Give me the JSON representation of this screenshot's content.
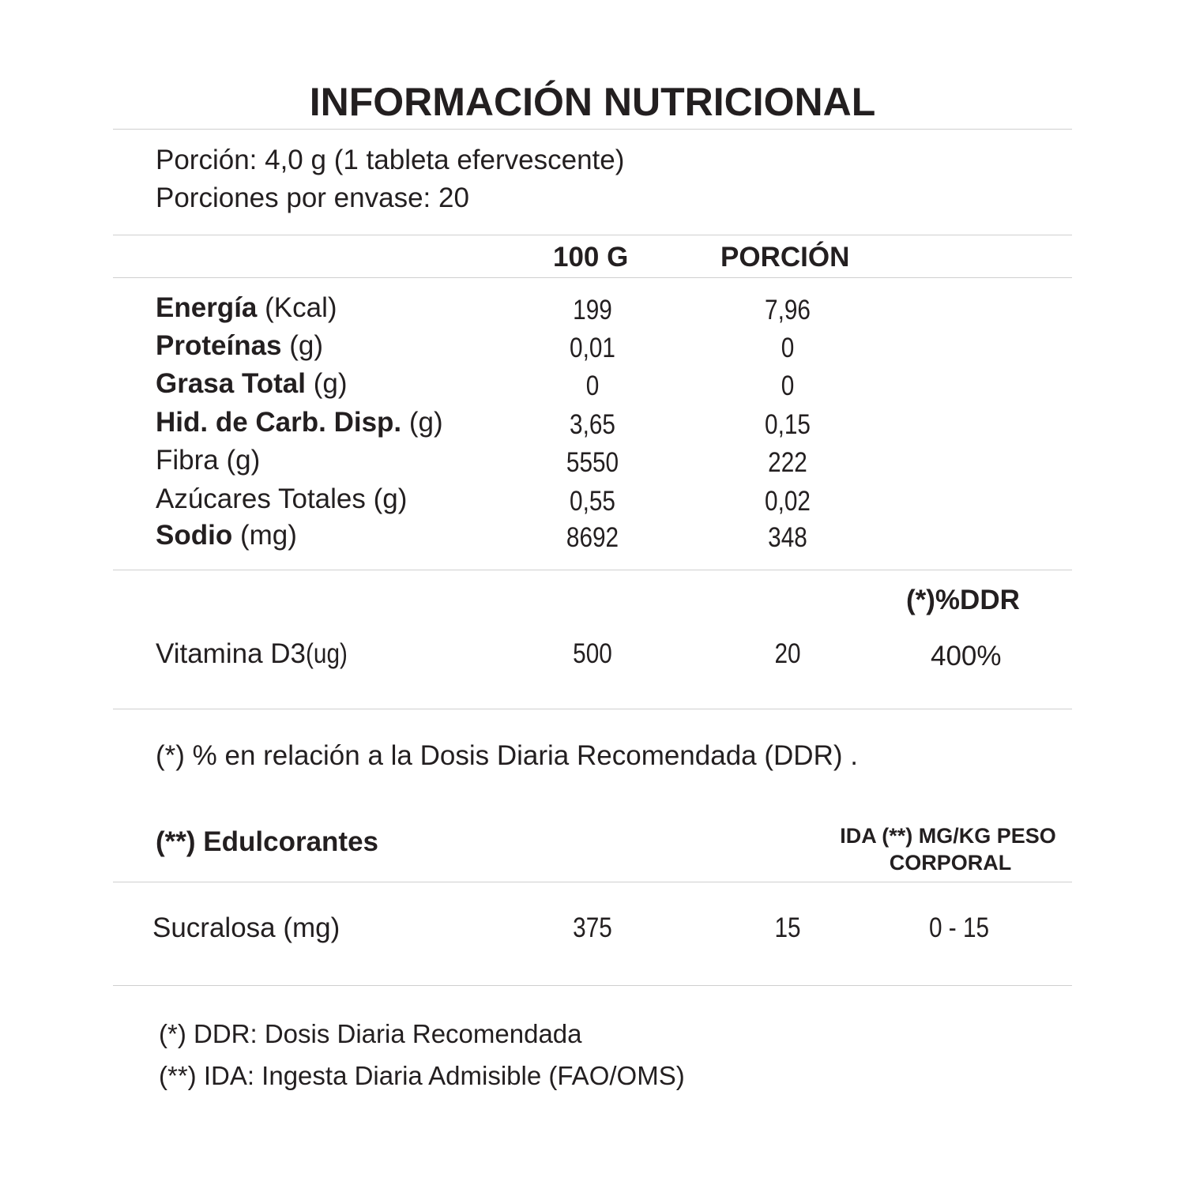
{
  "title": "INFORMACIÓN NUTRICIONAL",
  "serving": {
    "portion": "Porción: 4,0 g (1 tableta efervescente)",
    "servings_per_container": "Porciones por envase: 20"
  },
  "columns": {
    "per100": "100 G",
    "portion": "PORCIÓN",
    "ddr": "(*)%DDR"
  },
  "nutrients": [
    {
      "name": "Energía",
      "unit": " (Kcal)",
      "bold": true,
      "per100": "199",
      "portion": "7,96"
    },
    {
      "name": "Proteínas",
      "unit": " (g)",
      "bold": true,
      "per100": "0,01",
      "portion": "0"
    },
    {
      "name": "Grasa Total",
      "unit": " (g)",
      "bold": true,
      "per100": "0",
      "portion": "0"
    },
    {
      "name": "Hid. de Carb. Disp.",
      "unit": " (g)",
      "bold": true,
      "per100": "3,65",
      "portion": "0,15"
    },
    {
      "name": "Fibra",
      "unit": " (g)",
      "bold": false,
      "per100": "5550",
      "portion": "222"
    },
    {
      "name": "Azúcares Totales",
      "unit": " (g)",
      "bold": false,
      "per100": "0,55",
      "portion": "0,02"
    },
    {
      "name": "Sodio",
      "unit": " (mg)",
      "bold": true,
      "per100": "8692",
      "portion": "348"
    }
  ],
  "vitamin": {
    "name": "Vitamina D3",
    "unit": " (ug)",
    "per100": "500",
    "portion": "20",
    "ddr": "400%"
  },
  "ddr_note": "(*) % en relación a la Dosis Diaria Recomendada (DDR) .",
  "sweeteners": {
    "heading": "(**) Edulcorantes",
    "ida_header_1": "IDA (**) MG/KG PESO",
    "ida_header_2": "CORPORAL",
    "items": [
      {
        "name": "Sucralosa (mg)",
        "per100": "375",
        "portion": "15",
        "ida": "0 - 15"
      }
    ]
  },
  "footnotes": [
    "(*) DDR: Dosis Diaria Recomendada",
    "(**) IDA: Ingesta Diaria Admisible (FAO/OMS)"
  ]
}
